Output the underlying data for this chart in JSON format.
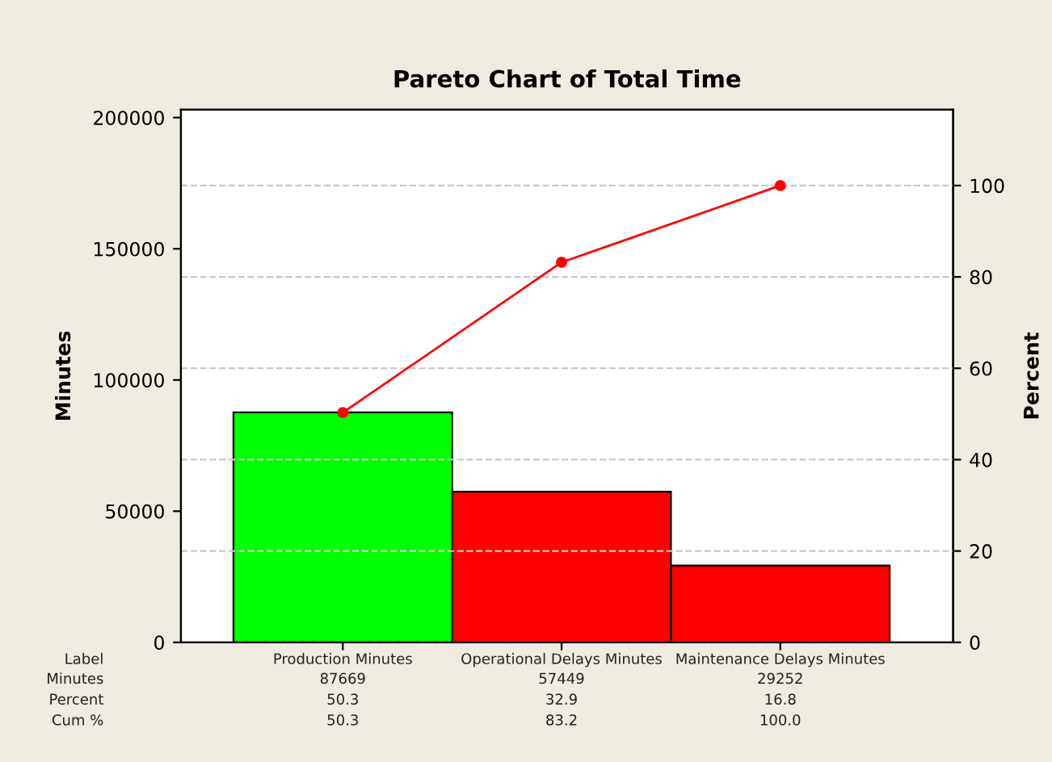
{
  "chart_data": {
    "type": "bar",
    "title": "Pareto Chart of Total Time",
    "ylabel": "Minutes",
    "y2label": "Percent",
    "categories": [
      "Production Minutes",
      "Operational Delays Minutes",
      "Maintenance Delays Minutes"
    ],
    "series": [
      {
        "colors": [
          "#00ff00",
          "#ff0000",
          "#ff0000"
        ],
        "values": [
          87669,
          57449,
          29252
        ],
        "value_labels": [
          "87669",
          "57449",
          "29252"
        ]
      },
      {
        "type": "line",
        "axis": "y2",
        "color": "#ff0000",
        "marker": "circle",
        "values": [
          50.3,
          83.2,
          100.0
        ],
        "value_labels": [
          "50.3",
          "83.2",
          "100.0"
        ]
      }
    ],
    "annotations": [
      "Label",
      "Minutes",
      "Percent",
      "Cum %",
      "50.3",
      "32.9",
      "16.8"
    ],
    "ylim": [
      0,
      203000
    ],
    "yticks": [
      0,
      50000,
      100000,
      150000,
      200000
    ],
    "y2lim": [
      0,
      116.6
    ],
    "y2ticks": [
      0,
      20,
      40,
      60,
      80,
      100
    ],
    "grid": "y2",
    "legend": false
  }
}
